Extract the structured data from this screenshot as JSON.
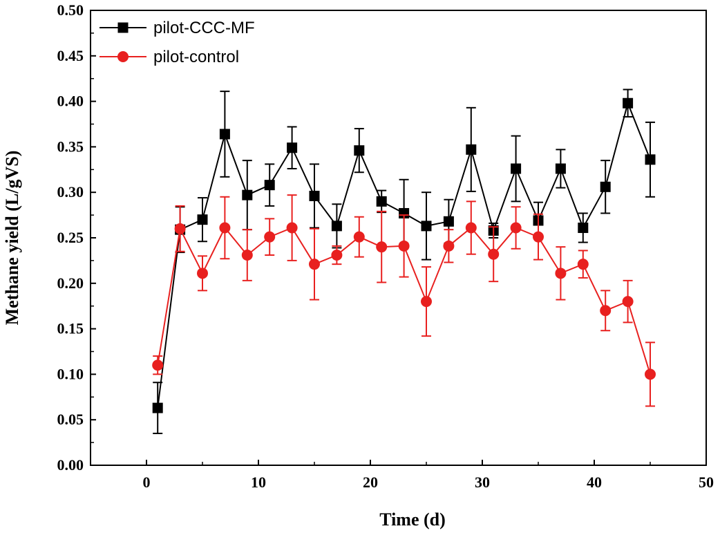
{
  "chart_data": {
    "type": "line",
    "title": "",
    "xlabel": "Time (d)",
    "ylabel": "Methane yield (L/gVS)",
    "xlim": [
      -5,
      50
    ],
    "ylim": [
      0,
      0.5
    ],
    "xticks": [
      0,
      10,
      20,
      30,
      40,
      50
    ],
    "yticks": [
      0.0,
      0.05,
      0.1,
      0.15,
      0.2,
      0.25,
      0.3,
      0.35,
      0.4,
      0.45,
      0.5
    ],
    "xtick_labels": [
      "0",
      "10",
      "20",
      "30",
      "40",
      "50"
    ],
    "ytick_labels": [
      "0.00",
      "0.05",
      "0.10",
      "0.15",
      "0.20",
      "0.25",
      "0.30",
      "0.35",
      "0.40",
      "0.45",
      "0.50"
    ],
    "grid": false,
    "legend_position": "top-left",
    "series": [
      {
        "name": "pilot-CCC-MF",
        "color": "#000000",
        "marker": "square",
        "x": [
          1,
          3,
          5,
          7,
          9,
          11,
          13,
          15,
          17,
          19,
          21,
          23,
          25,
          27,
          29,
          31,
          33,
          35,
          37,
          39,
          41,
          43,
          45
        ],
        "y": [
          0.063,
          0.259,
          0.27,
          0.364,
          0.297,
          0.308,
          0.349,
          0.296,
          0.263,
          0.346,
          0.29,
          0.277,
          0.263,
          0.268,
          0.347,
          0.258,
          0.326,
          0.269,
          0.326,
          0.261,
          0.306,
          0.398,
          0.336
        ],
        "err": [
          0.028,
          0.025,
          0.024,
          0.047,
          0.038,
          0.023,
          0.023,
          0.035,
          0.024,
          0.024,
          0.012,
          0.037,
          0.037,
          0.024,
          0.046,
          0.008,
          0.036,
          0.02,
          0.021,
          0.016,
          0.029,
          0.015,
          0.041
        ]
      },
      {
        "name": "pilot-control",
        "color": "#e8201f",
        "marker": "circle",
        "x": [
          1,
          3,
          5,
          7,
          9,
          11,
          13,
          15,
          17,
          19,
          21,
          23,
          25,
          27,
          29,
          31,
          33,
          35,
          37,
          39,
          41,
          43,
          45
        ],
        "y": [
          0.11,
          0.26,
          0.211,
          0.261,
          0.231,
          0.251,
          0.261,
          0.221,
          0.231,
          0.251,
          0.24,
          0.241,
          0.18,
          0.241,
          0.261,
          0.232,
          0.261,
          0.251,
          0.211,
          0.221,
          0.17,
          0.18,
          0.1
        ],
        "err": [
          0.01,
          0.025,
          0.019,
          0.034,
          0.028,
          0.02,
          0.036,
          0.039,
          0.01,
          0.022,
          0.039,
          0.034,
          0.038,
          0.018,
          0.029,
          0.03,
          0.023,
          0.025,
          0.029,
          0.015,
          0.022,
          0.023,
          0.035
        ]
      }
    ]
  }
}
